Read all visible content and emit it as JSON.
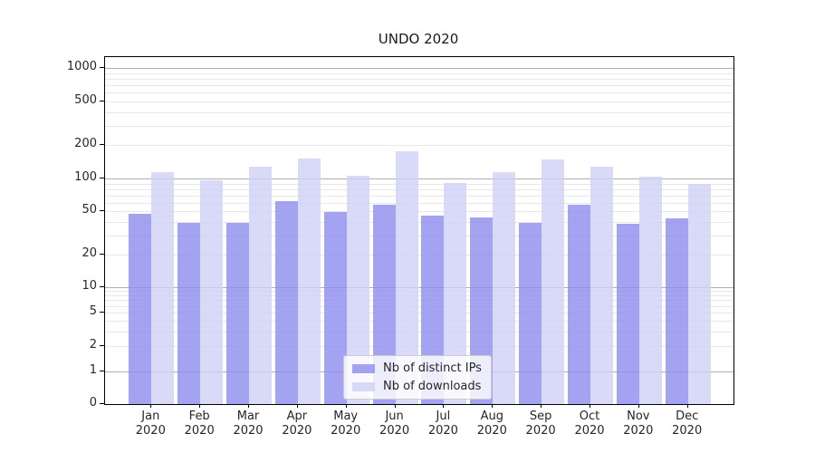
{
  "title": "UNDO 2020",
  "colors": {
    "ips_bar": "#8c8cee",
    "downloads_bar": "#d0d0f6",
    "grid_major": "#b0b0b0",
    "grid_minor": "#e8e8e8",
    "spine": "#000000",
    "text": "#262626"
  },
  "chart_data": {
    "type": "bar",
    "title": "UNDO 2020",
    "categories": [
      {
        "month": "Jan",
        "year": "2020"
      },
      {
        "month": "Feb",
        "year": "2020"
      },
      {
        "month": "Mar",
        "year": "2020"
      },
      {
        "month": "Apr",
        "year": "2020"
      },
      {
        "month": "May",
        "year": "2020"
      },
      {
        "month": "Jun",
        "year": "2020"
      },
      {
        "month": "Jul",
        "year": "2020"
      },
      {
        "month": "Aug",
        "year": "2020"
      },
      {
        "month": "Sep",
        "year": "2020"
      },
      {
        "month": "Oct",
        "year": "2020"
      },
      {
        "month": "Nov",
        "year": "2020"
      },
      {
        "month": "Dec",
        "year": "2020"
      }
    ],
    "series": [
      {
        "name": "Nb of distinct IPs",
        "color": "#8c8cee",
        "values": [
          47,
          39,
          39,
          62,
          49,
          57,
          46,
          44,
          39,
          57,
          38,
          43
        ]
      },
      {
        "name": "Nb of downloads",
        "color": "#d0d0f6",
        "values": [
          115,
          96,
          128,
          152,
          105,
          175,
          91,
          115,
          150,
          127,
          103,
          90
        ]
      }
    ],
    "xlabel": "",
    "ylabel": "",
    "y_axis": {
      "scale": "symlog",
      "ticks": [
        0,
        1,
        2,
        5,
        10,
        20,
        50,
        100,
        200,
        500,
        1000
      ],
      "ylim": [
        0,
        1000
      ]
    },
    "grid": "on",
    "legend_position": "lower-center"
  }
}
